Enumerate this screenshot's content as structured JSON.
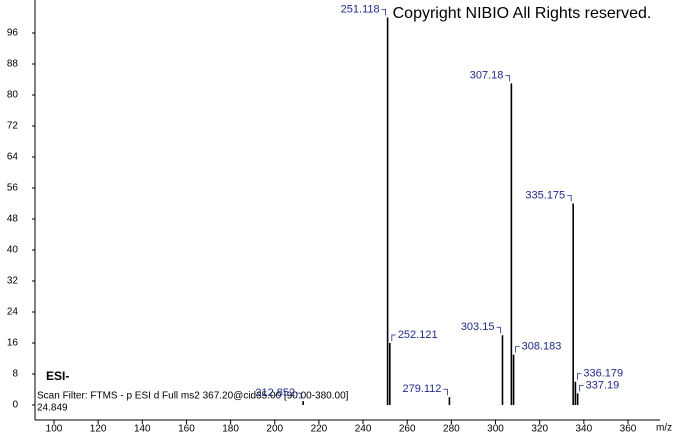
{
  "chart_data": {
    "type": "spectrum",
    "copyright": "Copyright NIBIO All Rights reserved.",
    "ionization": "ESI-",
    "scan_filter": "Scan Filter: FTMS - p ESI d Full ms2 367.20@cid35.00 [90.00-380.00]",
    "retention": "24.849",
    "x_label": "m/z",
    "color": "#000000",
    "label_color": "#1f2a8a",
    "x": [
      212.852,
      251.118,
      252.121,
      279.112,
      303.15,
      307.18,
      308.183,
      335.175,
      336.179,
      337.19
    ],
    "values": [
      1,
      100,
      16,
      2,
      18,
      83,
      13,
      52,
      6,
      3
    ],
    "xlim": [
      91.4,
      374.5
    ],
    "ylim": [
      0,
      100
    ],
    "xticks": [
      100,
      120,
      140,
      160,
      180,
      200,
      220,
      240,
      260,
      280,
      300,
      320,
      340,
      360
    ],
    "yticks": [
      0,
      8,
      16,
      24,
      32,
      40,
      48,
      56,
      64,
      72,
      80,
      88,
      96
    ]
  }
}
